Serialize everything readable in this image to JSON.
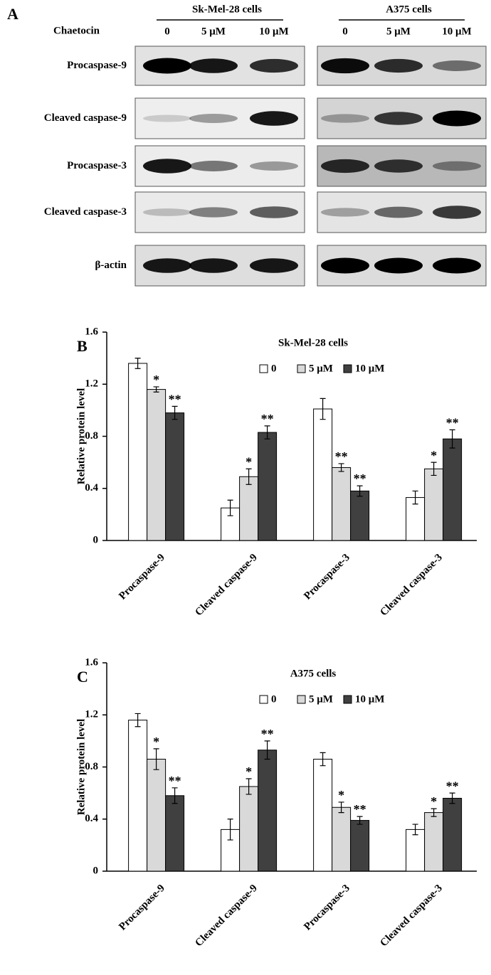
{
  "blot": {
    "panel_label": "A",
    "treatment_label": "Chaetocin",
    "groups": [
      {
        "name": "Sk-Mel-28 cells",
        "lanes": [
          "0",
          "5 μM",
          "10 μM"
        ]
      },
      {
        "name": "A375 cells",
        "lanes": [
          "0",
          "5 μM",
          "10 μM"
        ]
      }
    ],
    "rows": [
      "Procaspase-9",
      "Cleaved caspase-9",
      "Procaspase-3",
      "Cleaved caspase-3",
      "β-actin"
    ]
  },
  "chart_data": [
    {
      "type": "bar",
      "panel_label": "B",
      "title": "Sk-Mel-28 cells",
      "ylabel": "Relative protein level",
      "categories": [
        "Procaspase-9",
        "Cleaved caspase-9",
        "Procaspase-3",
        "Cleaved caspase-3"
      ],
      "ylim": [
        0,
        1.6
      ],
      "yticks": [
        0,
        0.4,
        0.8,
        1.2,
        1.6
      ],
      "series": [
        {
          "name": "0",
          "color": "#ffffff",
          "values": [
            1.36,
            0.25,
            1.01,
            0.33
          ],
          "error": [
            0.04,
            0.06,
            0.08,
            0.05
          ],
          "significance": [
            null,
            null,
            null,
            null
          ]
        },
        {
          "name": "5 μM",
          "color": "#d9d9d9",
          "values": [
            1.16,
            0.49,
            0.56,
            0.55
          ],
          "error": [
            0.02,
            0.06,
            0.03,
            0.05
          ],
          "significance": [
            "*",
            "*",
            "**",
            "*"
          ]
        },
        {
          "name": "10 μM",
          "color": "#404040",
          "values": [
            0.98,
            0.83,
            0.38,
            0.78
          ],
          "error": [
            0.05,
            0.05,
            0.04,
            0.07
          ],
          "significance": [
            "**",
            "**",
            "**",
            "**"
          ]
        }
      ]
    },
    {
      "type": "bar",
      "panel_label": "C",
      "title": "A375 cells",
      "ylabel": "Relative protein level",
      "categories": [
        "Procaspase-9",
        "Cleaved caspase-9",
        "Procaspase-3",
        "Cleaved caspase-3"
      ],
      "ylim": [
        0,
        1.6
      ],
      "yticks": [
        0,
        0.4,
        0.8,
        1.2,
        1.6
      ],
      "series": [
        {
          "name": "0",
          "color": "#ffffff",
          "values": [
            1.16,
            0.32,
            0.86,
            0.32
          ],
          "error": [
            0.05,
            0.08,
            0.05,
            0.04
          ],
          "significance": [
            null,
            null,
            null,
            null
          ]
        },
        {
          "name": "5 μM",
          "color": "#d9d9d9",
          "values": [
            0.86,
            0.65,
            0.49,
            0.45
          ],
          "error": [
            0.08,
            0.06,
            0.04,
            0.03
          ],
          "significance": [
            "*",
            "*",
            "*",
            "*"
          ]
        },
        {
          "name": "10 μM",
          "color": "#404040",
          "values": [
            0.58,
            0.93,
            0.39,
            0.56
          ],
          "error": [
            0.06,
            0.07,
            0.03,
            0.04
          ],
          "significance": [
            "**",
            "**",
            "**",
            "**"
          ]
        }
      ]
    }
  ]
}
